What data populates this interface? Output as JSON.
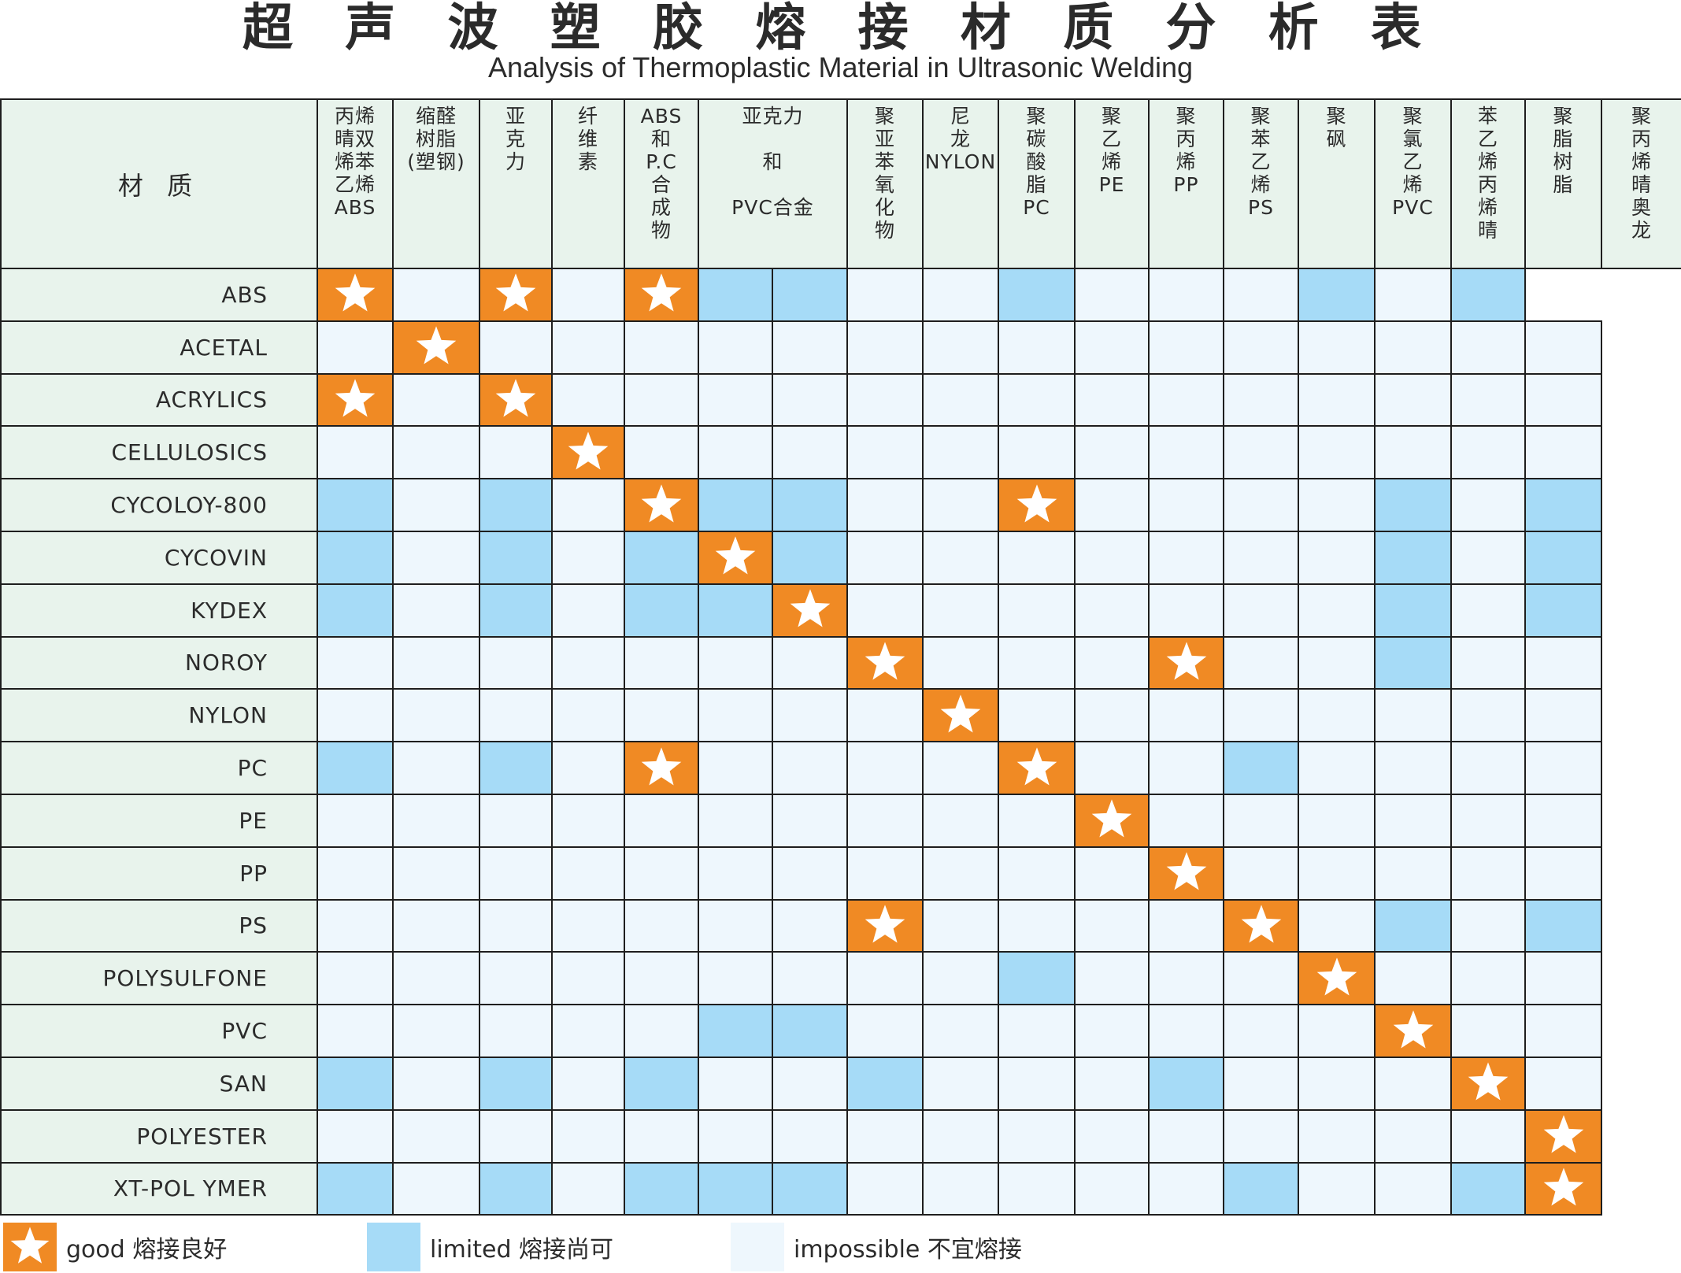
{
  "title": "超 声 波 塑 胶 熔 接 材 质 分 析 表",
  "subtitle": "Analysis of Thermoplastic Material in Ultrasonic Welding",
  "corner_label": "材 质",
  "legend": [
    {
      "key": "good",
      "label": "good 熔接良好",
      "color": "#f08a24"
    },
    {
      "key": "limited",
      "label": "limited 熔接尚可",
      "color": "#a6dbf7"
    },
    {
      "key": "impossible",
      "label": "impossible  不宜熔接",
      "color": "#eef7fd"
    }
  ],
  "chart_data": {
    "type": "table",
    "title": "超声波塑胶熔接材质分析表",
    "subtitle": "Analysis of Thermoplastic Material in Ultrasonic Welding",
    "columns": [
      {
        "label": "丙烯\n晴双\n烯苯\n乙烯\nABS",
        "span": 1
      },
      {
        "label": "缩醛\n树脂\n(塑钢)",
        "span": 1
      },
      {
        "label": "亚\n克\n力",
        "span": 1
      },
      {
        "label": "纤\n维\n素",
        "span": 1
      },
      {
        "label": "ABS\n和\nP.C\n合\n成\n物",
        "span": 1
      },
      {
        "label": "亚克力\n\n和\n\nPVC合金",
        "span": 2
      },
      {
        "label": "聚\n亚\n苯\n氧\n化\n物",
        "span": 1
      },
      {
        "label": "尼\n龙\nNYLON",
        "span": 1
      },
      {
        "label": "聚\n碳\n酸\n脂\nPC",
        "span": 1
      },
      {
        "label": "聚\n乙\n烯\nPE",
        "span": 1
      },
      {
        "label": "聚\n丙\n烯\nPP",
        "span": 1
      },
      {
        "label": "聚\n苯\n乙\n烯\nPS",
        "span": 1
      },
      {
        "label": "聚\n砜",
        "span": 1
      },
      {
        "label": "聚\n氯\n乙\n烯\nPVC",
        "span": 1
      },
      {
        "label": "苯\n乙\n烯\n丙\n烯\n晴",
        "span": 1
      },
      {
        "label": "聚\n脂\n树\n脂",
        "span": 1
      },
      {
        "label": "聚\n丙\n烯\n晴\n奥\n龙",
        "span": 1
      }
    ],
    "rows": [
      {
        "label": "ABS",
        "cells": "G.G.GLL..L...L.L"
      },
      {
        "label": "ACETAL",
        "cells": ".G..............."
      },
      {
        "label": "ACRYLICS",
        "cells": "G.G.............."
      },
      {
        "label": "CELLULOSICS",
        "cells": "...G............."
      },
      {
        "label": "CYCOLOY-800",
        "cells": "L.L.GLL..G....L.L"
      },
      {
        "label": "CYCOVIN",
        "cells": "L.L.LGL.......L.L"
      },
      {
        "label": "KYDEX",
        "cells": "L.L.LLG.......L.L"
      },
      {
        "label": "NOROY",
        "cells": ".......G...G..L.."
      },
      {
        "label": "NYLON",
        "cells": "........G........"
      },
      {
        "label": "PC",
        "cells": "L.L.G....G..L...."
      },
      {
        "label": "PE",
        "cells": "..........G......"
      },
      {
        "label": "PP",
        "cells": "...........G....."
      },
      {
        "label": "PS",
        "cells": ".......G....G.L.L"
      },
      {
        "label": "POLYSULFONE",
        "cells": ".........L...G..."
      },
      {
        "label": "PVC",
        "cells": ".....LL.......G.."
      },
      {
        "label": "SAN",
        "cells": "L.L.L..L...L...G."
      },
      {
        "label": "POLYESTER",
        "cells": "................G"
      },
      {
        "label": "XT-POL YMER",
        "cells": "L.L.LLL.....L..LG"
      }
    ],
    "cell_code": {
      "G": "good",
      "L": "limited",
      ".": "impossible"
    }
  }
}
